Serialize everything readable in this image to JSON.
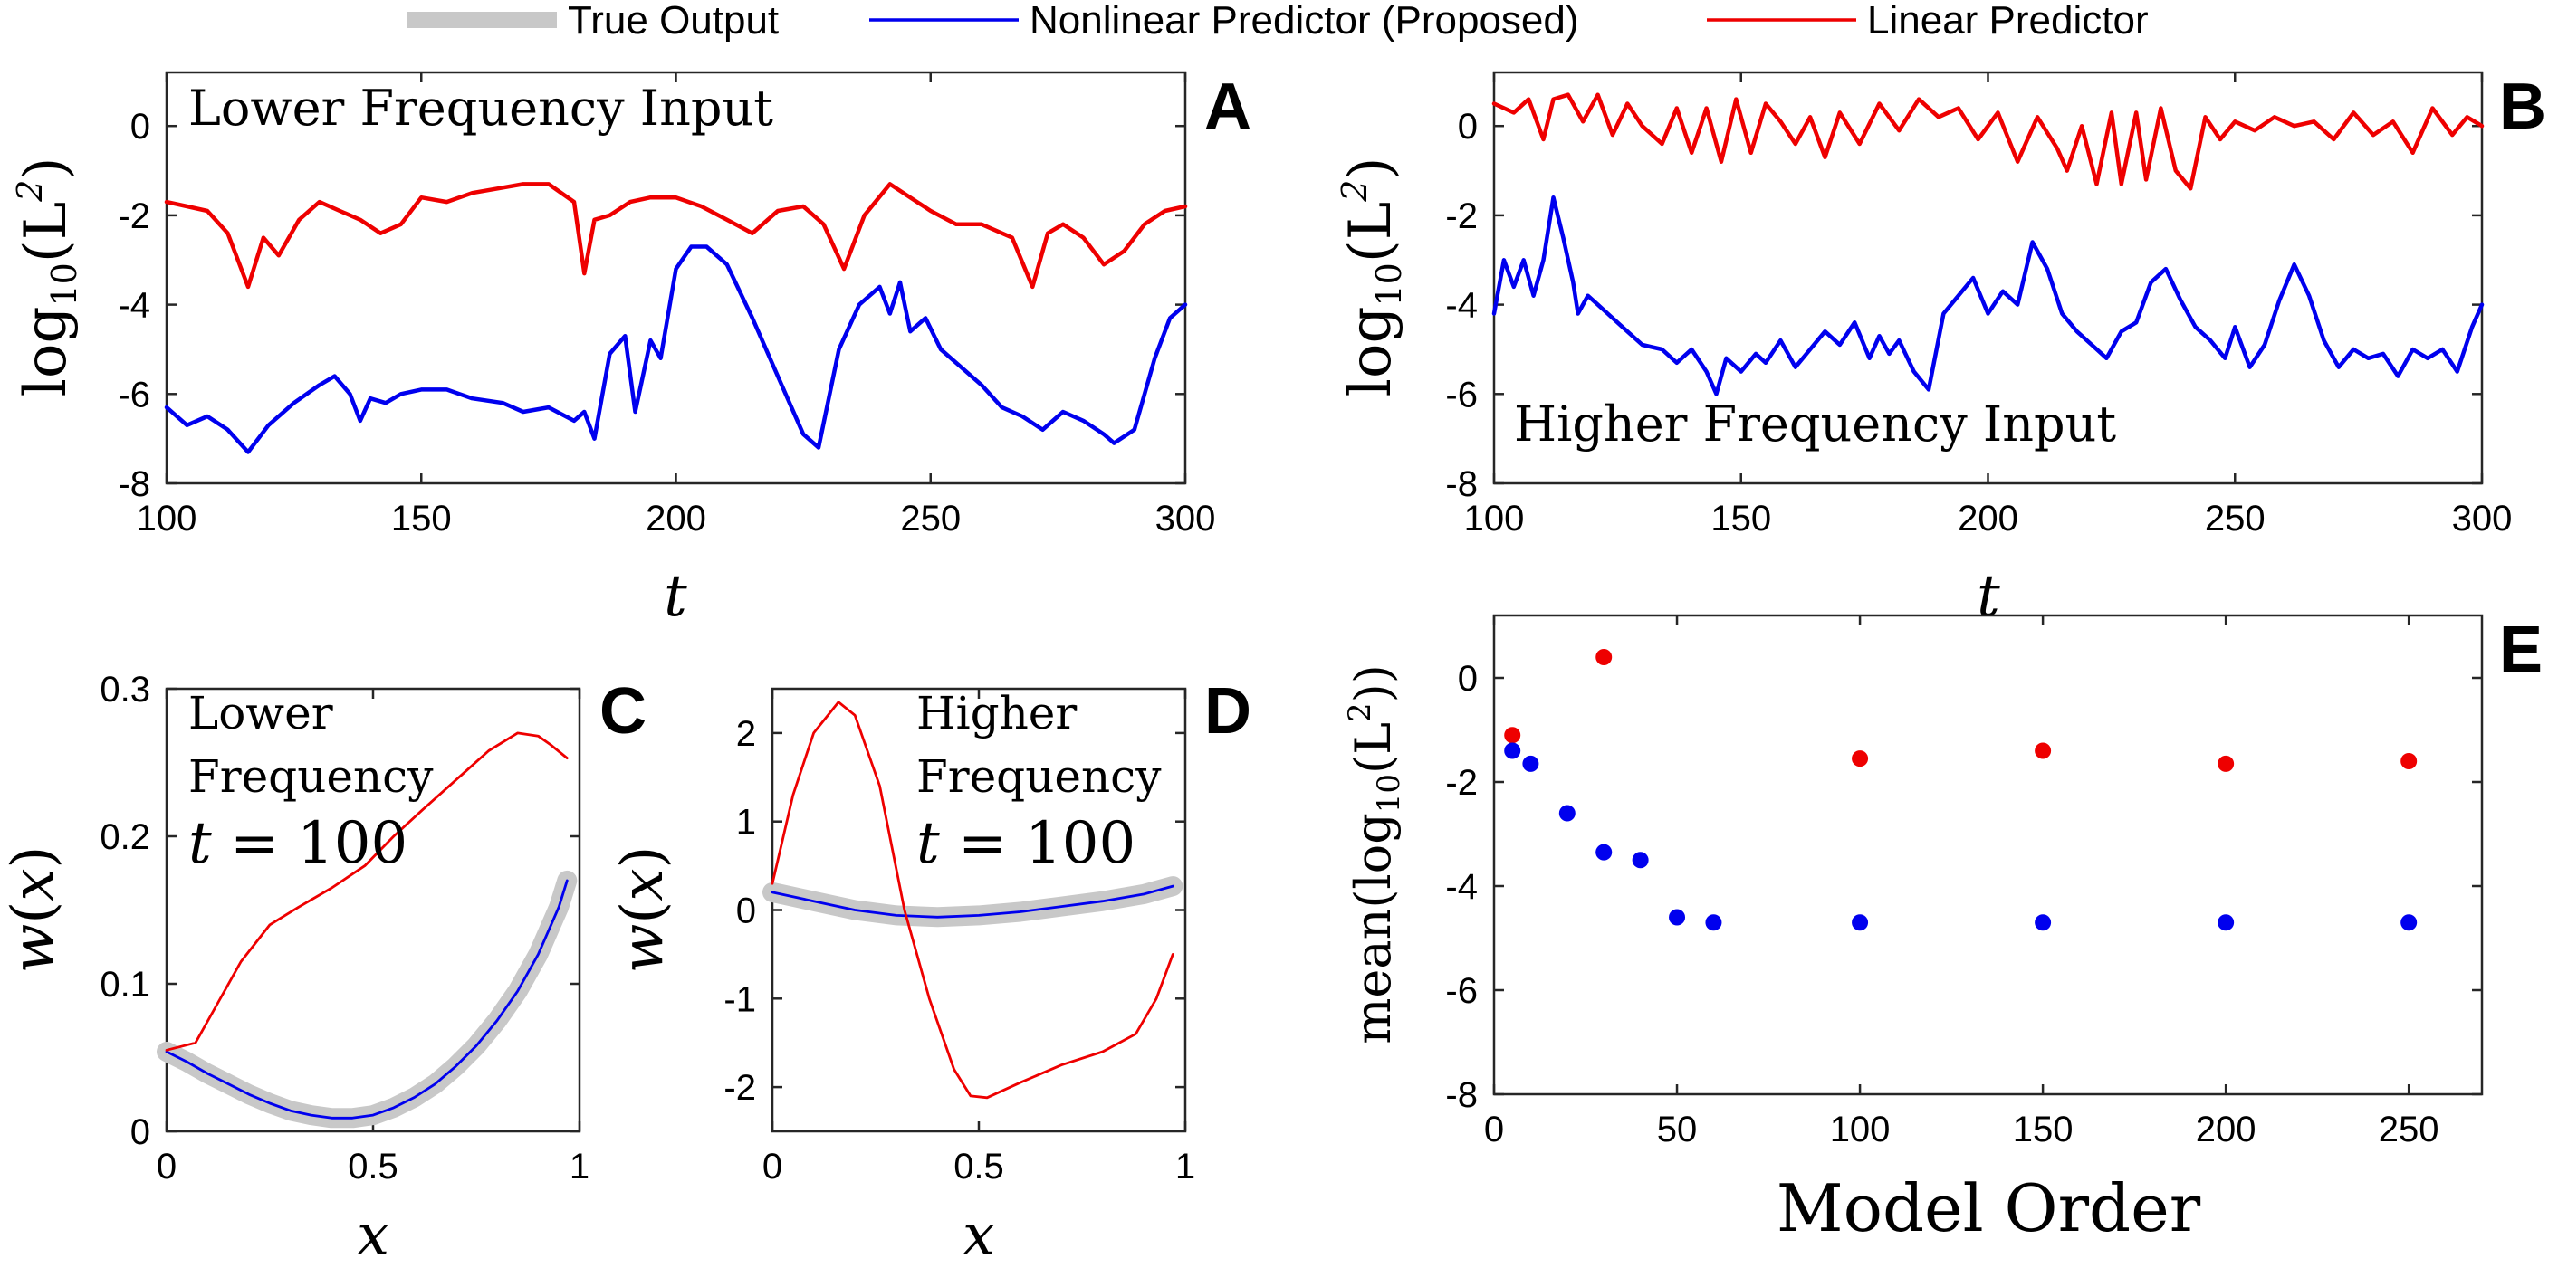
{
  "legend": {
    "placement": "top-center",
    "items": [
      {
        "label": "True Output",
        "color": "#c8c8c8",
        "style": "thick"
      },
      {
        "label": "Nonlinear Predictor (Proposed)",
        "color": "#0000ee",
        "style": "line"
      },
      {
        "label": "Linear Predictor",
        "color": "#ee0000",
        "style": "line"
      }
    ]
  },
  "colors": {
    "true_output": "#c8c8c8",
    "nonlinear": "#0000ee",
    "linear": "#ee0000",
    "axis": "#262626"
  },
  "chart_data": [
    {
      "panel": "A",
      "type": "line",
      "annotation": "Lower Frequency Input",
      "xlabel": "t",
      "ylabel": "log10(L^2)",
      "xlim": [
        100,
        300
      ],
      "ylim": [
        -8,
        1.2
      ],
      "xticks": [
        100,
        150,
        200,
        250,
        300
      ],
      "yticks": [
        0,
        -2,
        -4,
        -6,
        -8
      ],
      "series": [
        {
          "name": "Linear Predictor",
          "color": "#ee0000",
          "x": [
            100,
            104,
            108,
            112,
            116,
            119,
            122,
            126,
            130,
            134,
            138,
            142,
            146,
            150,
            155,
            160,
            165,
            170,
            175,
            180,
            182,
            184,
            187,
            191,
            195,
            200,
            205,
            210,
            215,
            220,
            225,
            229,
            233,
            237,
            242,
            246,
            250,
            255,
            260,
            266,
            270,
            273,
            276,
            280,
            284,
            288,
            292,
            296,
            300
          ],
          "y": [
            -1.7,
            -1.8,
            -1.9,
            -2.4,
            -3.6,
            -2.5,
            -2.9,
            -2.1,
            -1.7,
            -1.9,
            -2.1,
            -2.4,
            -2.2,
            -1.6,
            -1.7,
            -1.5,
            -1.4,
            -1.3,
            -1.3,
            -1.7,
            -3.3,
            -2.1,
            -2.0,
            -1.7,
            -1.6,
            -1.6,
            -1.8,
            -2.1,
            -2.4,
            -1.9,
            -1.8,
            -2.2,
            -3.2,
            -2.0,
            -1.3,
            -1.6,
            -1.9,
            -2.2,
            -2.2,
            -2.5,
            -3.6,
            -2.4,
            -2.2,
            -2.5,
            -3.1,
            -2.8,
            -2.2,
            -1.9,
            -1.8
          ]
        },
        {
          "name": "Nonlinear Predictor (Proposed)",
          "color": "#0000ee",
          "x": [
            100,
            104,
            108,
            112,
            116,
            120,
            125,
            130,
            133,
            136,
            138,
            140,
            143,
            146,
            150,
            155,
            160,
            166,
            170,
            175,
            180,
            182,
            184,
            187,
            190,
            192,
            195,
            197,
            200,
            203,
            206,
            210,
            215,
            220,
            225,
            228,
            232,
            236,
            240,
            242,
            244,
            246,
            249,
            252,
            256,
            260,
            264,
            268,
            272,
            276,
            280,
            284,
            286,
            290,
            294,
            297,
            300
          ],
          "y": [
            -6.3,
            -6.7,
            -6.5,
            -6.8,
            -7.3,
            -6.7,
            -6.2,
            -5.8,
            -5.6,
            -6.0,
            -6.6,
            -6.1,
            -6.2,
            -6.0,
            -5.9,
            -5.9,
            -6.1,
            -6.2,
            -6.4,
            -6.3,
            -6.6,
            -6.4,
            -7.0,
            -5.1,
            -4.7,
            -6.4,
            -4.8,
            -5.2,
            -3.2,
            -2.7,
            -2.7,
            -3.1,
            -4.3,
            -5.6,
            -6.9,
            -7.2,
            -5.0,
            -4.0,
            -3.6,
            -4.2,
            -3.5,
            -4.6,
            -4.3,
            -5.0,
            -5.4,
            -5.8,
            -6.3,
            -6.5,
            -6.8,
            -6.4,
            -6.6,
            -6.9,
            -7.1,
            -6.8,
            -5.2,
            -4.3,
            -4.0
          ]
        }
      ]
    },
    {
      "panel": "B",
      "type": "line",
      "annotation": "Higher Frequency Input",
      "xlabel": "t",
      "ylabel": "log10(L^2)",
      "xlim": [
        100,
        300
      ],
      "ylim": [
        -8,
        1.2
      ],
      "xticks": [
        100,
        150,
        200,
        250,
        300
      ],
      "yticks": [
        0,
        -2,
        -4,
        -6,
        -8
      ],
      "series": [
        {
          "name": "Linear Predictor",
          "color": "#ee0000",
          "x": [
            100,
            104,
            107,
            110,
            112,
            115,
            118,
            121,
            124,
            127,
            130,
            134,
            137,
            140,
            143,
            146,
            149,
            152,
            155,
            158,
            161,
            164,
            167,
            170,
            174,
            178,
            182,
            186,
            190,
            194,
            198,
            202,
            206,
            210,
            214,
            216,
            219,
            222,
            225,
            227,
            230,
            232,
            235,
            238,
            241,
            244,
            247,
            250,
            254,
            258,
            262,
            266,
            270,
            274,
            278,
            282,
            286,
            290,
            294,
            297,
            300
          ],
          "y": [
            0.5,
            0.3,
            0.6,
            -0.3,
            0.6,
            0.7,
            0.1,
            0.7,
            -0.2,
            0.5,
            0.0,
            -0.4,
            0.4,
            -0.6,
            0.4,
            -0.8,
            0.6,
            -0.6,
            0.5,
            0.1,
            -0.4,
            0.2,
            -0.7,
            0.3,
            -0.4,
            0.5,
            -0.1,
            0.6,
            0.2,
            0.4,
            -0.3,
            0.3,
            -0.8,
            0.2,
            -0.5,
            -1.0,
            0.0,
            -1.3,
            0.3,
            -1.3,
            0.3,
            -1.2,
            0.4,
            -1.0,
            -1.4,
            0.2,
            -0.3,
            0.1,
            -0.1,
            0.2,
            0.0,
            0.1,
            -0.3,
            0.3,
            -0.2,
            0.1,
            -0.6,
            0.4,
            -0.2,
            0.2,
            0.0
          ]
        },
        {
          "name": "Nonlinear Predictor (Proposed)",
          "color": "#0000ee",
          "x": [
            100,
            102,
            104,
            106,
            108,
            110,
            112,
            114,
            116,
            117,
            119,
            121,
            123,
            126,
            130,
            134,
            137,
            140,
            143,
            145,
            147,
            150,
            153,
            155,
            158,
            161,
            164,
            167,
            170,
            173,
            176,
            178,
            180,
            182,
            185,
            188,
            191,
            194,
            197,
            200,
            203,
            206,
            209,
            212,
            215,
            218,
            221,
            224,
            227,
            230,
            233,
            236,
            239,
            242,
            245,
            248,
            250,
            253,
            256,
            259,
            262,
            265,
            268,
            271,
            274,
            277,
            280,
            283,
            286,
            289,
            292,
            295,
            298,
            300
          ],
          "y": [
            -4.2,
            -3.0,
            -3.6,
            -3.0,
            -3.8,
            -3.0,
            -1.6,
            -2.5,
            -3.5,
            -4.2,
            -3.8,
            -4.0,
            -4.2,
            -4.5,
            -4.9,
            -5.0,
            -5.3,
            -5.0,
            -5.5,
            -6.0,
            -5.2,
            -5.5,
            -5.1,
            -5.3,
            -4.8,
            -5.4,
            -5.0,
            -4.6,
            -4.9,
            -4.4,
            -5.2,
            -4.7,
            -5.1,
            -4.8,
            -5.5,
            -5.9,
            -4.2,
            -3.8,
            -3.4,
            -4.2,
            -3.7,
            -4.0,
            -2.6,
            -3.2,
            -4.2,
            -4.6,
            -4.9,
            -5.2,
            -4.6,
            -4.4,
            -3.5,
            -3.2,
            -3.9,
            -4.5,
            -4.8,
            -5.2,
            -4.5,
            -5.4,
            -4.9,
            -3.9,
            -3.1,
            -3.8,
            -4.8,
            -5.4,
            -5.0,
            -5.2,
            -5.1,
            -5.6,
            -5.0,
            -5.2,
            -5.0,
            -5.5,
            -4.5,
            -4.0
          ]
        }
      ]
    },
    {
      "panel": "C",
      "type": "line",
      "annotation": [
        "Lower",
        "Frequency",
        "t = 100"
      ],
      "xlabel": "x",
      "ylabel": "w(x)",
      "xlim": [
        0,
        1
      ],
      "ylim": [
        0,
        0.3
      ],
      "xticks": [
        0,
        0.5,
        1
      ],
      "yticks": [
        0,
        0.1,
        0.2,
        0.3
      ],
      "series": [
        {
          "name": "True Output",
          "color": "#c8c8c8",
          "x": [
            0,
            0.05,
            0.1,
            0.15,
            0.2,
            0.25,
            0.3,
            0.35,
            0.4,
            0.45,
            0.5,
            0.55,
            0.6,
            0.65,
            0.7,
            0.75,
            0.8,
            0.85,
            0.9,
            0.95,
            0.97
          ],
          "y": [
            0.054,
            0.047,
            0.039,
            0.032,
            0.025,
            0.019,
            0.014,
            0.011,
            0.009,
            0.009,
            0.011,
            0.016,
            0.023,
            0.032,
            0.044,
            0.058,
            0.075,
            0.095,
            0.12,
            0.152,
            0.17
          ]
        },
        {
          "name": "Nonlinear Predictor (Proposed)",
          "color": "#0000ee",
          "x": [
            0,
            0.05,
            0.1,
            0.15,
            0.2,
            0.25,
            0.3,
            0.35,
            0.4,
            0.45,
            0.5,
            0.55,
            0.6,
            0.65,
            0.7,
            0.75,
            0.8,
            0.85,
            0.9,
            0.95,
            0.97
          ],
          "y": [
            0.054,
            0.047,
            0.039,
            0.032,
            0.025,
            0.019,
            0.014,
            0.011,
            0.009,
            0.009,
            0.011,
            0.016,
            0.023,
            0.032,
            0.044,
            0.058,
            0.075,
            0.095,
            0.12,
            0.152,
            0.17
          ]
        },
        {
          "name": "Linear Predictor",
          "color": "#ee0000",
          "x": [
            0,
            0.07,
            0.12,
            0.18,
            0.25,
            0.32,
            0.4,
            0.48,
            0.55,
            0.62,
            0.7,
            0.78,
            0.85,
            0.9,
            0.93,
            0.97
          ],
          "y": [
            0.055,
            0.06,
            0.085,
            0.115,
            0.14,
            0.152,
            0.165,
            0.18,
            0.2,
            0.218,
            0.238,
            0.258,
            0.27,
            0.268,
            0.262,
            0.253
          ]
        }
      ]
    },
    {
      "panel": "D",
      "type": "line",
      "annotation": [
        "Higher",
        "Frequency",
        "t = 100"
      ],
      "xlabel": "x",
      "ylabel": "w(x)",
      "xlim": [
        0,
        1
      ],
      "ylim": [
        -2.5,
        2.5
      ],
      "xticks": [
        0,
        0.5,
        1
      ],
      "yticks": [
        -2,
        -1,
        0,
        1,
        2
      ],
      "series": [
        {
          "name": "True Output",
          "color": "#c8c8c8",
          "x": [
            0,
            0.1,
            0.2,
            0.3,
            0.4,
            0.5,
            0.6,
            0.7,
            0.8,
            0.9,
            0.97
          ],
          "y": [
            0.2,
            0.1,
            0.0,
            -0.06,
            -0.08,
            -0.06,
            -0.02,
            0.04,
            0.1,
            0.18,
            0.27
          ]
        },
        {
          "name": "Nonlinear Predictor (Proposed)",
          "color": "#0000ee",
          "x": [
            0,
            0.1,
            0.2,
            0.3,
            0.4,
            0.5,
            0.6,
            0.7,
            0.8,
            0.9,
            0.97
          ],
          "y": [
            0.2,
            0.1,
            0.0,
            -0.06,
            -0.08,
            -0.06,
            -0.02,
            0.04,
            0.1,
            0.18,
            0.27
          ]
        },
        {
          "name": "Linear Predictor",
          "color": "#ee0000",
          "x": [
            0,
            0.05,
            0.1,
            0.16,
            0.2,
            0.26,
            0.32,
            0.38,
            0.44,
            0.48,
            0.52,
            0.6,
            0.7,
            0.8,
            0.88,
            0.93,
            0.97
          ],
          "y": [
            0.3,
            1.3,
            2.0,
            2.35,
            2.2,
            1.4,
            0.0,
            -1.0,
            -1.8,
            -2.1,
            -2.12,
            -1.95,
            -1.75,
            -1.6,
            -1.4,
            -1.0,
            -0.5
          ]
        }
      ]
    },
    {
      "panel": "E",
      "type": "scatter",
      "xlabel": "Model Order",
      "ylabel": "mean(log10(L^2))",
      "xlim": [
        0,
        270
      ],
      "ylim": [
        -8,
        1.2
      ],
      "xticks": [
        0,
        50,
        100,
        150,
        200,
        250
      ],
      "yticks": [
        0,
        -2,
        -4,
        -6,
        -8
      ],
      "series": [
        {
          "name": "Linear Predictor",
          "color": "#ee0000",
          "x": [
            5,
            30,
            100,
            150,
            200,
            250
          ],
          "y": [
            -1.1,
            0.4,
            -1.55,
            -1.4,
            -1.65,
            -1.6
          ]
        },
        {
          "name": "Nonlinear Predictor (Proposed)",
          "color": "#0000ee",
          "x": [
            5,
            10,
            20,
            30,
            40,
            50,
            60,
            100,
            150,
            200,
            250
          ],
          "y": [
            -1.4,
            -1.65,
            -2.6,
            -3.35,
            -3.5,
            -4.6,
            -4.7,
            -4.7,
            -4.7,
            -4.7,
            -4.7
          ]
        }
      ]
    }
  ]
}
